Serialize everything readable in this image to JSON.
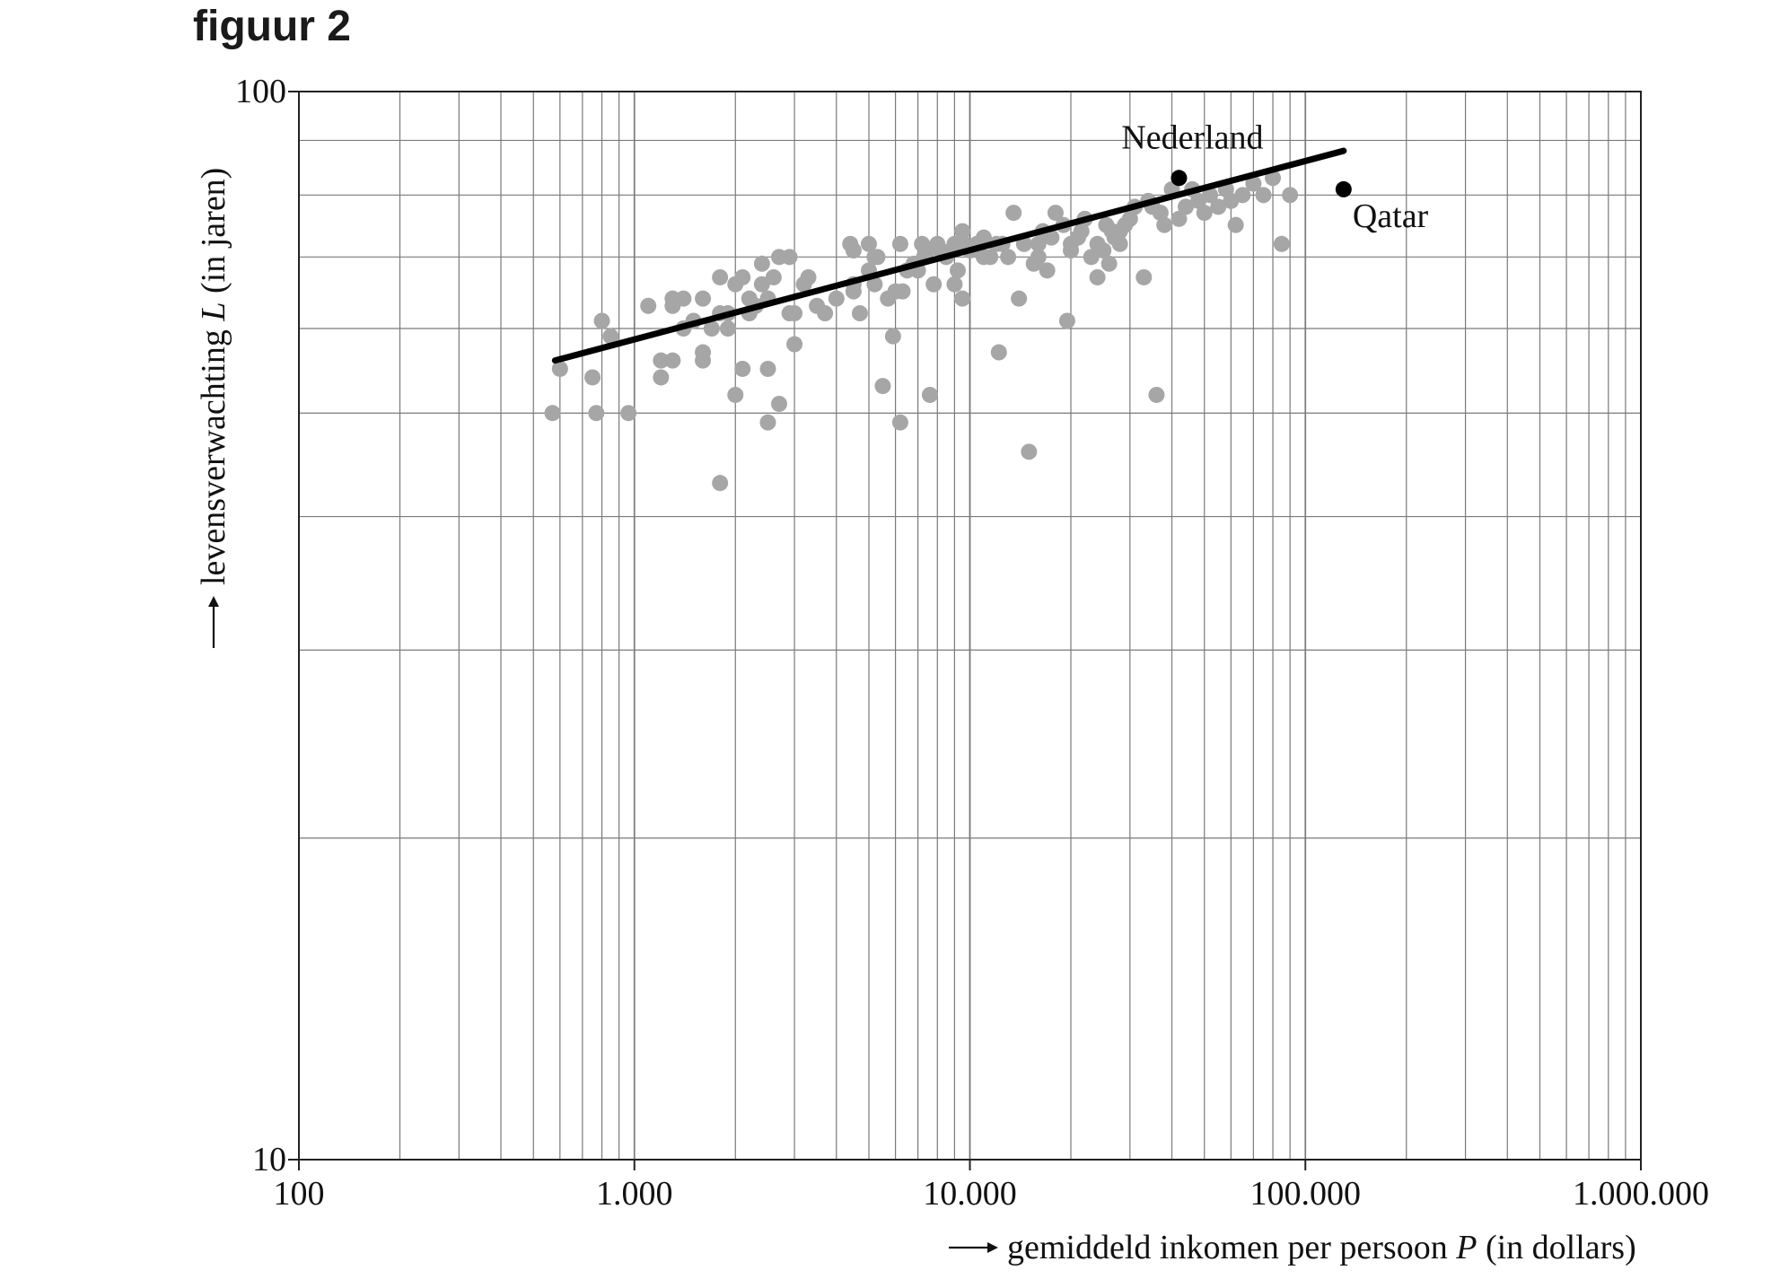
{
  "figure_title": "figuur 2",
  "chart_data": {
    "type": "scatter",
    "title": "",
    "xlabel": {
      "prefix": "gemiddeld inkomen per persoon ",
      "var": "P",
      "suffix": " (in dollars)"
    },
    "ylabel": {
      "prefix": "levensverwachting ",
      "var": "L",
      "suffix": " (in jaren)"
    },
    "xscale": "log",
    "yscale": "log",
    "xlim": [
      100,
      1000000
    ],
    "ylim": [
      10,
      100
    ],
    "x_ticks": [
      100,
      1000,
      10000,
      100000,
      1000000
    ],
    "x_tick_labels": [
      "100",
      "1.000",
      "10.000",
      "100.000",
      "1.000.000"
    ],
    "y_ticks": [
      10,
      100
    ],
    "y_tick_labels": [
      "10",
      "100"
    ],
    "grid": true,
    "colors": {
      "points": "#a6a6a6",
      "highlight": "#000000",
      "trend": "#000000",
      "grid": "#7a7a7a"
    },
    "trend_line": {
      "x": [
        580,
        130000
      ],
      "y": [
        56,
        88
      ]
    },
    "highlighted": [
      {
        "label": "Nederland",
        "x": 42000,
        "y": 83
      },
      {
        "label": "Qatar",
        "x": 130000,
        "y": 81
      }
    ],
    "series": [
      {
        "points": [
          [
            570,
            50
          ],
          [
            600,
            55
          ],
          [
            750,
            54
          ],
          [
            770,
            50
          ],
          [
            800,
            61
          ],
          [
            850,
            59
          ],
          [
            960,
            50
          ],
          [
            1100,
            63
          ],
          [
            1200,
            54
          ],
          [
            1200,
            56
          ],
          [
            1300,
            63
          ],
          [
            1300,
            64
          ],
          [
            1300,
            56
          ],
          [
            1400,
            64
          ],
          [
            1400,
            60
          ],
          [
            1500,
            61
          ],
          [
            1600,
            57
          ],
          [
            1600,
            56
          ],
          [
            1600,
            64
          ],
          [
            1700,
            60
          ],
          [
            1800,
            62
          ],
          [
            1800,
            43
          ],
          [
            1800,
            67
          ],
          [
            1900,
            60
          ],
          [
            1900,
            62
          ],
          [
            2000,
            66
          ],
          [
            2000,
            52
          ],
          [
            2100,
            55
          ],
          [
            2100,
            67
          ],
          [
            2200,
            62
          ],
          [
            2200,
            64
          ],
          [
            2300,
            63
          ],
          [
            2400,
            66
          ],
          [
            2400,
            69
          ],
          [
            2500,
            49
          ],
          [
            2500,
            64
          ],
          [
            2500,
            55
          ],
          [
            2600,
            67
          ],
          [
            2700,
            51
          ],
          [
            2700,
            70
          ],
          [
            2900,
            70
          ],
          [
            2900,
            62
          ],
          [
            3000,
            62
          ],
          [
            3000,
            58
          ],
          [
            3200,
            66
          ],
          [
            3300,
            67
          ],
          [
            3500,
            63
          ],
          [
            3700,
            62
          ],
          [
            4000,
            64
          ],
          [
            4400,
            72
          ],
          [
            4500,
            65
          ],
          [
            4500,
            71
          ],
          [
            4500,
            66
          ],
          [
            4700,
            62
          ],
          [
            5000,
            68
          ],
          [
            5000,
            72
          ],
          [
            5200,
            70
          ],
          [
            5200,
            66
          ],
          [
            5300,
            70
          ],
          [
            5500,
            53
          ],
          [
            5700,
            64
          ],
          [
            5900,
            59
          ],
          [
            6000,
            65
          ],
          [
            6200,
            72
          ],
          [
            6200,
            49
          ],
          [
            6300,
            65
          ],
          [
            6500,
            68
          ],
          [
            7000,
            68
          ],
          [
            7200,
            72
          ],
          [
            7300,
            70
          ],
          [
            7500,
            71
          ],
          [
            7600,
            52
          ],
          [
            7800,
            66
          ],
          [
            8000,
            72
          ],
          [
            8500,
            70
          ],
          [
            9000,
            72
          ],
          [
            9000,
            66
          ],
          [
            9500,
            74
          ],
          [
            9200,
            68
          ],
          [
            9500,
            64
          ],
          [
            10000,
            71
          ],
          [
            10500,
            72
          ],
          [
            11000,
            73
          ],
          [
            11500,
            70
          ],
          [
            12000,
            72
          ],
          [
            12200,
            57
          ],
          [
            13000,
            70
          ],
          [
            13500,
            77
          ],
          [
            14000,
            64
          ],
          [
            14500,
            72
          ],
          [
            15000,
            46
          ],
          [
            15500,
            69
          ],
          [
            16000,
            72
          ],
          [
            16500,
            74
          ],
          [
            17000,
            68
          ],
          [
            18000,
            77
          ],
          [
            19000,
            75
          ],
          [
            19500,
            61
          ],
          [
            20000,
            71
          ],
          [
            21000,
            73
          ],
          [
            22000,
            76
          ],
          [
            23000,
            70
          ],
          [
            24000,
            67
          ],
          [
            25000,
            71
          ],
          [
            25500,
            75
          ],
          [
            26000,
            69
          ],
          [
            27000,
            73
          ],
          [
            28000,
            72
          ],
          [
            29000,
            75
          ],
          [
            30000,
            76
          ],
          [
            31000,
            78
          ],
          [
            33000,
            67
          ],
          [
            34000,
            79
          ],
          [
            36000,
            52
          ],
          [
            37000,
            77
          ],
          [
            38000,
            75
          ],
          [
            40000,
            81
          ],
          [
            42000,
            76
          ],
          [
            44000,
            78
          ],
          [
            46000,
            81
          ],
          [
            48000,
            79
          ],
          [
            50000,
            77
          ],
          [
            52000,
            80
          ],
          [
            55000,
            78
          ],
          [
            58000,
            81
          ],
          [
            60000,
            79
          ],
          [
            65000,
            80
          ],
          [
            70000,
            82
          ],
          [
            75000,
            80
          ],
          [
            80000,
            83
          ],
          [
            85000,
            72
          ],
          [
            90000,
            80
          ],
          [
            62000,
            75
          ],
          [
            35000,
            78
          ],
          [
            24000,
            72
          ],
          [
            28000,
            74
          ],
          [
            20000,
            72
          ],
          [
            9600,
            72
          ],
          [
            11000,
            70
          ],
          [
            16000,
            70
          ],
          [
            6800,
            69
          ],
          [
            8200,
            71
          ],
          [
            12500,
            72
          ],
          [
            17500,
            73
          ],
          [
            21500,
            74
          ],
          [
            26500,
            74
          ]
        ]
      }
    ]
  }
}
